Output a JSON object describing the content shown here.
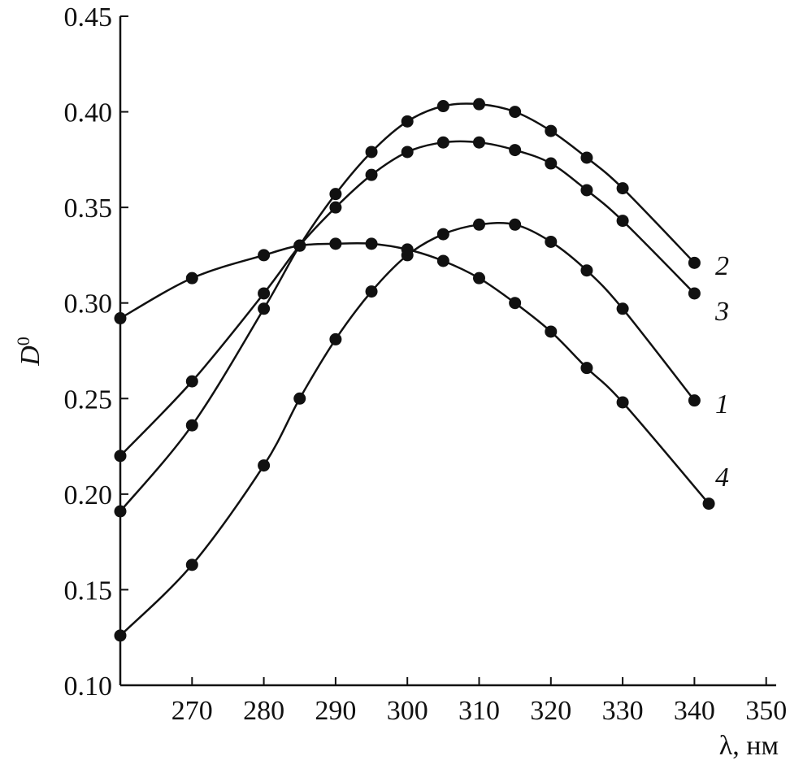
{
  "chart_data": {
    "type": "line",
    "title": "",
    "xlabel": "λ, нм",
    "ylabel": "D",
    "ylabel_superscript": "0",
    "xlim": [
      260,
      350
    ],
    "ylim": [
      0.1,
      0.45
    ],
    "xticks": [
      270,
      280,
      290,
      300,
      310,
      320,
      330,
      340,
      350
    ],
    "yticks": [
      "0.10",
      "0.15",
      "0.20",
      "0.25",
      "0.30",
      "0.35",
      "0.40",
      "0.45"
    ],
    "grid": false,
    "marker": "filled-circle",
    "color": "#111111",
    "series": [
      {
        "name": "1",
        "x": [
          260,
          270,
          280,
          285,
          290,
          295,
          300,
          305,
          310,
          315,
          320,
          325,
          330,
          340
        ],
        "y": [
          0.126,
          0.163,
          0.215,
          0.25,
          0.281,
          0.306,
          0.325,
          0.336,
          0.341,
          0.341,
          0.332,
          0.317,
          0.297,
          0.249
        ]
      },
      {
        "name": "2",
        "x": [
          260,
          270,
          280,
          285,
          290,
          295,
          300,
          305,
          310,
          315,
          320,
          325,
          330,
          340
        ],
        "y": [
          0.191,
          0.236,
          0.297,
          0.33,
          0.357,
          0.379,
          0.395,
          0.403,
          0.404,
          0.4,
          0.39,
          0.376,
          0.36,
          0.321
        ]
      },
      {
        "name": "3",
        "x": [
          260,
          270,
          280,
          285,
          290,
          295,
          300,
          305,
          310,
          315,
          320,
          325,
          330,
          340
        ],
        "y": [
          0.22,
          0.259,
          0.305,
          0.33,
          0.35,
          0.367,
          0.379,
          0.384,
          0.384,
          0.38,
          0.373,
          0.359,
          0.343,
          0.305
        ]
      },
      {
        "name": "4",
        "x": [
          260,
          270,
          280,
          285,
          290,
          295,
          300,
          305,
          310,
          315,
          320,
          325,
          330,
          342
        ],
        "y": [
          0.292,
          0.313,
          0.325,
          0.33,
          0.331,
          0.331,
          0.328,
          0.322,
          0.313,
          0.3,
          0.285,
          0.266,
          0.248,
          0.195
        ]
      }
    ]
  }
}
